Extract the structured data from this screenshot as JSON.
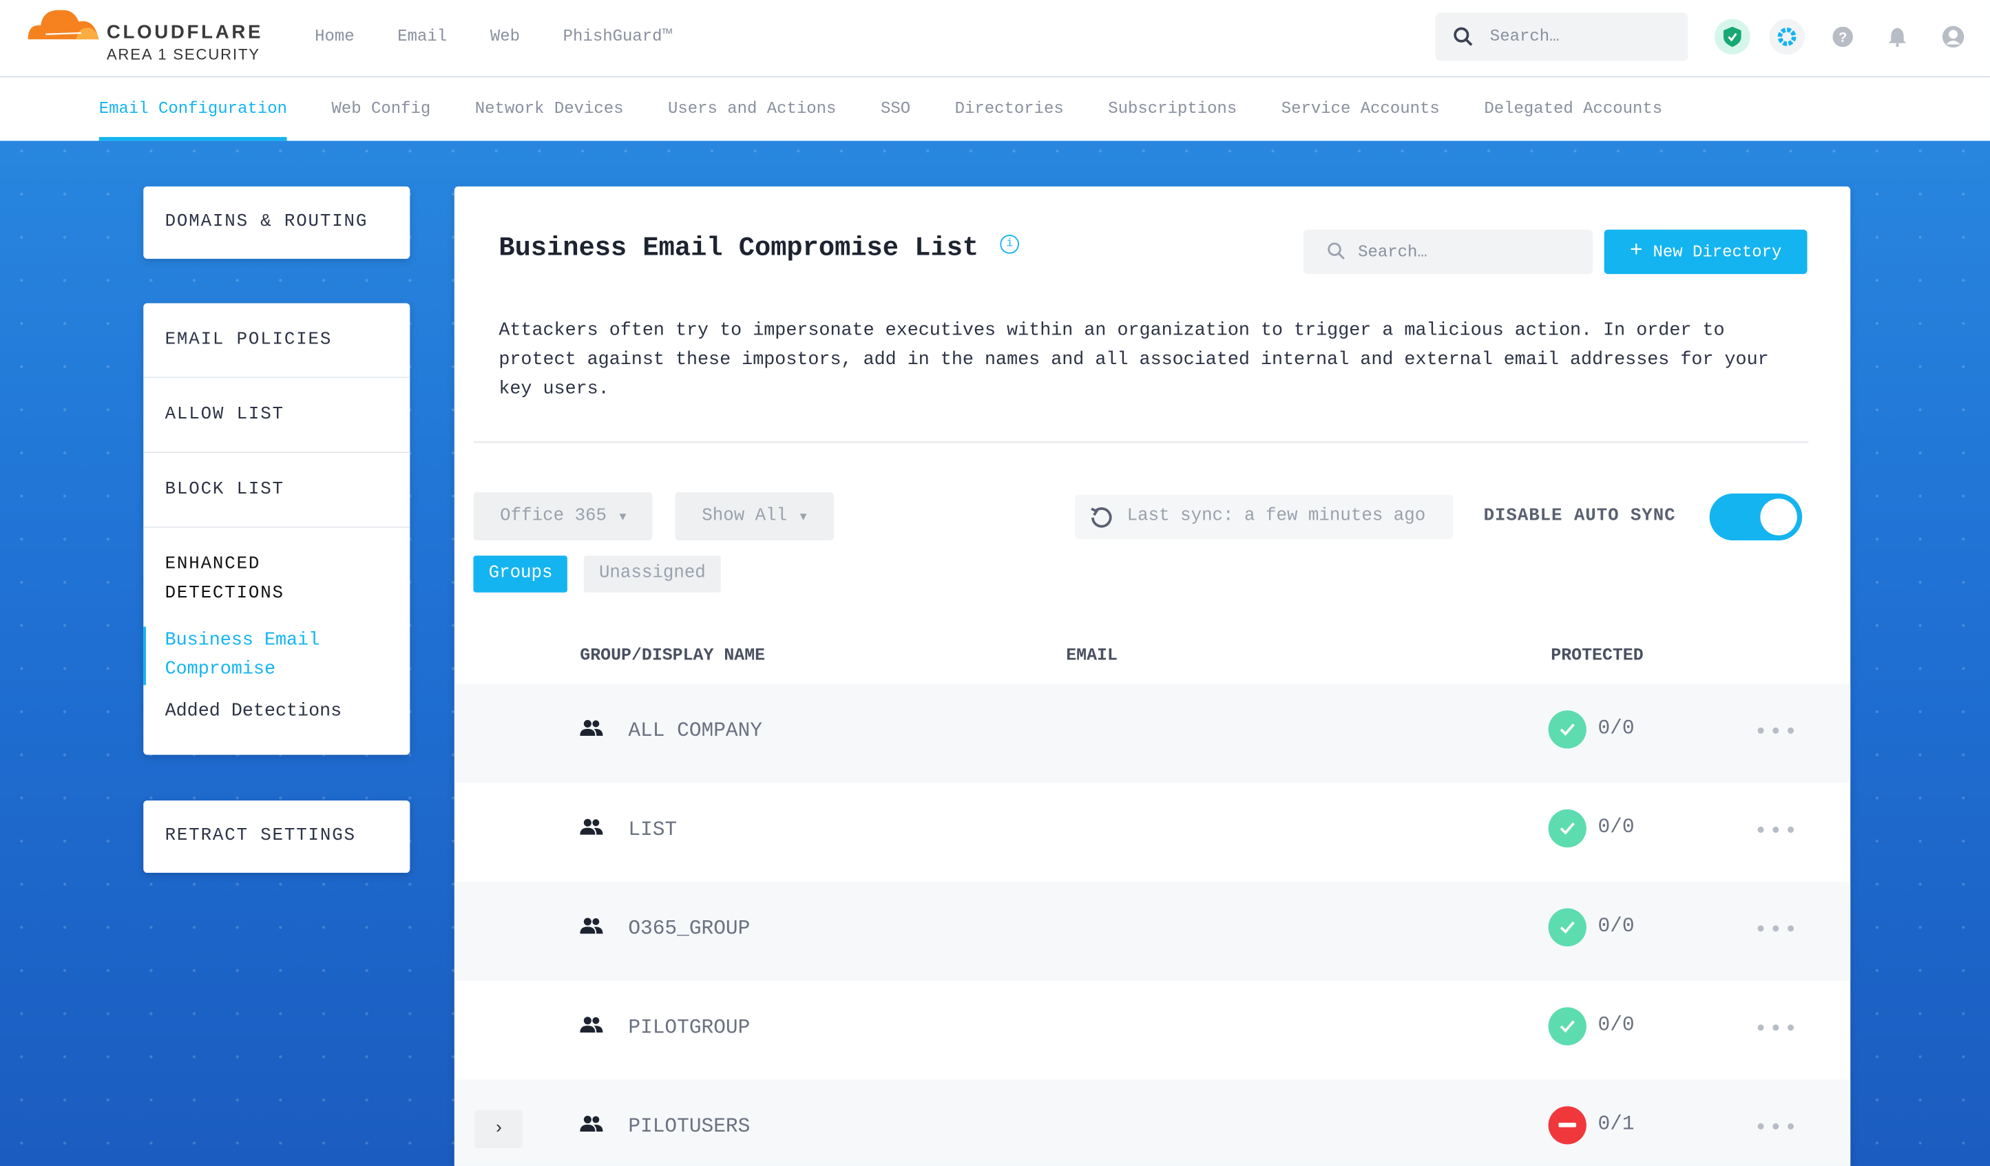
{
  "brand": {
    "name": "CLOUDFLARE",
    "sub": "AREA 1 SECURITY"
  },
  "topnav": [
    "Home",
    "Email",
    "Web",
    "PhishGuard™"
  ],
  "search": {
    "placeholder": "Search…"
  },
  "topicons": [
    "shield-check-icon",
    "gear-icon",
    "help-icon",
    "bell-icon",
    "user-icon"
  ],
  "subnav": [
    "Email Configuration",
    "Web Config",
    "Network Devices",
    "Users and Actions",
    "SSO",
    "Directories",
    "Subscriptions",
    "Service Accounts",
    "Delegated Accounts"
  ],
  "sidebar": {
    "domains": "DOMAINS & ROUTING",
    "policies": [
      "EMAIL POLICIES",
      "ALLOW LIST",
      "BLOCK LIST"
    ],
    "enhanced": "ENHANCED DETECTIONS",
    "enhanced_items": [
      "Business Email Compromise",
      "Added Detections"
    ],
    "retract": "RETRACT SETTINGS"
  },
  "main": {
    "title": "Business Email Compromise List",
    "search_placeholder": "Search…",
    "new_button": "New Directory",
    "description": "Attackers often try to impersonate executives within an organization to trigger a malicious action. In order to protect against these impostors, add in the names and all associated internal and external email addresses for your key users.",
    "filter_source": "Office 365",
    "filter_show": "Show All",
    "last_sync": "Last sync: a few minutes ago",
    "auto_sync_label": "DISABLE AUTO SYNC",
    "auto_sync_on": true,
    "pills": [
      "Groups",
      "Unassigned"
    ],
    "columns": [
      "GROUP/DISPLAY NAME",
      "EMAIL",
      "PROTECTED"
    ],
    "rows": [
      {
        "name": "ALL COMPANY",
        "email": "",
        "protected": "0/0",
        "status": "ok"
      },
      {
        "name": "LIST",
        "email": "",
        "protected": "0/0",
        "status": "ok"
      },
      {
        "name": "O365_GROUP",
        "email": "",
        "protected": "0/0",
        "status": "ok"
      },
      {
        "name": "PILOTGROUP",
        "email": "",
        "protected": "0/0",
        "status": "ok"
      },
      {
        "name": "PILOTUSERS",
        "email": "",
        "protected": "0/1",
        "status": "none"
      }
    ]
  },
  "colors": {
    "accent": "#14b4f0",
    "ok": "#5ddcb0",
    "bad": "#f0383c",
    "bg": "#1f6fd2"
  }
}
